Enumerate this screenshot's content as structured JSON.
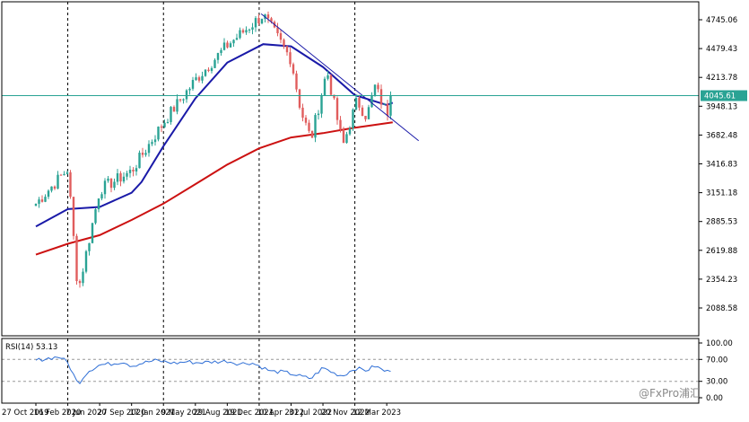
{
  "chart_data": [
    {
      "type": "candlestick",
      "panel": "price",
      "ylim": [
        1860,
        4880
      ],
      "y_ticks": [
        4745.06,
        4479.43,
        4213.78,
        3948.13,
        3682.48,
        3416.83,
        3151.18,
        2885.53,
        2619.88,
        2354.23,
        2088.58
      ],
      "y_tick_labels": [
        "4745.06",
        "4479.43",
        "4213.78",
        "3948.13",
        "3682.48",
        "3416.83",
        "3151.18",
        "2885.53",
        "2619.88",
        "2354.23",
        "2088.58"
      ],
      "x_tick_labels": [
        "27 Oct 2019",
        "16 Feb 2020",
        "7 Jun 2020",
        "27 Sep 2020",
        "17 Jan 2021",
        "9 May 2021",
        "29 Aug 2021",
        "19 Dec 2021",
        "10 Apr 2022",
        "31 Jul 2022",
        "20 Nov 2022",
        "12 Mar 2023"
      ],
      "dashed_gridlines_at": [
        "16 Feb 2020",
        "17 Jan 2021",
        "19 Dec 2021",
        "20 Nov 2022"
      ],
      "current_price_label": "4045.61",
      "current_price": 4045.61,
      "key_closes": [
        {
          "date": "27 Oct 2019",
          "close": 3050
        },
        {
          "date": "16 Feb 2020",
          "close": 3370
        },
        {
          "date": "23 Mar 2020",
          "close": 2240
        },
        {
          "date": "7 Jun 2020",
          "close": 3180
        },
        {
          "date": "27 Sep 2020",
          "close": 3350
        },
        {
          "date": "17 Jan 2021",
          "close": 3800
        },
        {
          "date": "9 May 2021",
          "close": 4190
        },
        {
          "date": "29 Aug 2021",
          "close": 4510
        },
        {
          "date": "2 Jan 2022",
          "close": 4790
        },
        {
          "date": "10 Apr 2022",
          "close": 4380
        },
        {
          "date": "15 May 2022",
          "close": 3900
        },
        {
          "date": "19 Jun 2022",
          "close": 3640
        },
        {
          "date": "14 Aug 2022",
          "close": 4280
        },
        {
          "date": "9 Oct 2022",
          "close": 3580
        },
        {
          "date": "27 Nov 2022",
          "close": 4000
        },
        {
          "date": "1 Jan 2023",
          "close": 3850
        },
        {
          "date": "29 Jan 2023",
          "close": 4130
        },
        {
          "date": "12 Mar 2023",
          "close": 3880
        },
        {
          "date": "2 Apr 2023",
          "close": 4045.61
        }
      ],
      "moving_averages": [
        {
          "color": "#1a1aa8",
          "points": [
            [
              "27 Oct 2019",
              2840
            ],
            [
              "16 Feb 2020",
              3000
            ],
            [
              "7 Jun 2020",
              3020
            ],
            [
              "27 Sep 2020",
              3150
            ],
            [
              "1 Nov 2020",
              3250
            ],
            [
              "17 Jan 2021",
              3580
            ],
            [
              "9 May 2021",
              4020
            ],
            [
              "29 Aug 2021",
              4350
            ],
            [
              "2 Jan 2022",
              4520
            ],
            [
              "10 Apr 2022",
              4500
            ],
            [
              "31 Jul 2022",
              4310
            ],
            [
              "20 Nov 2022",
              4050
            ],
            [
              "12 Mar 2023",
              3960
            ],
            [
              "2 Apr 2023",
              3980
            ]
          ]
        },
        {
          "color": "#cc1111",
          "points": [
            [
              "27 Oct 2019",
              2580
            ],
            [
              "16 Feb 2020",
              2680
            ],
            [
              "7 Jun 2020",
              2760
            ],
            [
              "27 Sep 2020",
              2900
            ],
            [
              "17 Jan 2021",
              3050
            ],
            [
              "9 May 2021",
              3230
            ],
            [
              "29 Aug 2021",
              3410
            ],
            [
              "19 Dec 2021",
              3560
            ],
            [
              "10 Apr 2022",
              3660
            ],
            [
              "31 Jul 2022",
              3700
            ],
            [
              "20 Nov 2022",
              3750
            ],
            [
              "2 Apr 2023",
              3800
            ]
          ]
        }
      ],
      "trendline": {
        "color": "#1a1aa8",
        "from": [
          "26 Dec 2021",
          4800
        ],
        "to": [
          "2 Jul 2023",
          3630
        ]
      },
      "colors": {
        "up": "#2aa394",
        "down": "#e05d5d",
        "price_line": "#2aa394"
      }
    },
    {
      "type": "line",
      "panel": "indicator",
      "label": "RSI(14) 53.13",
      "ylim": [
        0,
        100
      ],
      "y_ticks": [
        100,
        70,
        30,
        0
      ],
      "y_tick_labels": [
        "100.00",
        "70.00",
        "30.00",
        "0.00"
      ],
      "series_color": "#2f6fd6",
      "points": [
        [
          "27 Oct 2019",
          68
        ],
        [
          "8 Dec 2019",
          72
        ],
        [
          "19 Jan 2020",
          75
        ],
        [
          "16 Feb 2020",
          64
        ],
        [
          "23 Mar 2020",
          25
        ],
        [
          "26 Apr 2020",
          48
        ],
        [
          "7 Jun 2020",
          60
        ],
        [
          "19 Jul 2020",
          62
        ],
        [
          "30 Aug 2020",
          66
        ],
        [
          "27 Sep 2020",
          58
        ],
        [
          "8 Nov 2020",
          64
        ],
        [
          "20 Dec 2020",
          68
        ],
        [
          "17 Jan 2021",
          66
        ],
        [
          "28 Feb 2021",
          63
        ],
        [
          "11 Apr 2021",
          66
        ],
        [
          "9 May 2021",
          64
        ],
        [
          "20 Jun 2021",
          65
        ],
        [
          "1 Aug 2021",
          66
        ],
        [
          "29 Aug 2021",
          67
        ],
        [
          "10 Oct 2021",
          62
        ],
        [
          "21 Nov 2021",
          64
        ],
        [
          "19 Dec 2021",
          58
        ],
        [
          "30 Jan 2022",
          48
        ],
        [
          "13 Mar 2022",
          47
        ],
        [
          "10 Apr 2022",
          44
        ],
        [
          "22 May 2022",
          38
        ],
        [
          "19 Jun 2022",
          35
        ],
        [
          "31 Jul 2022",
          55
        ],
        [
          "11 Sep 2022",
          44
        ],
        [
          "9 Oct 2022",
          40
        ],
        [
          "20 Nov 2022",
          54
        ],
        [
          "1 Jan 2023",
          50
        ],
        [
          "29 Jan 2023",
          58
        ],
        [
          "12 Mar 2023",
          47
        ],
        [
          "2 Apr 2023",
          53
        ]
      ]
    }
  ],
  "watermark": "@FxPro浦汇"
}
